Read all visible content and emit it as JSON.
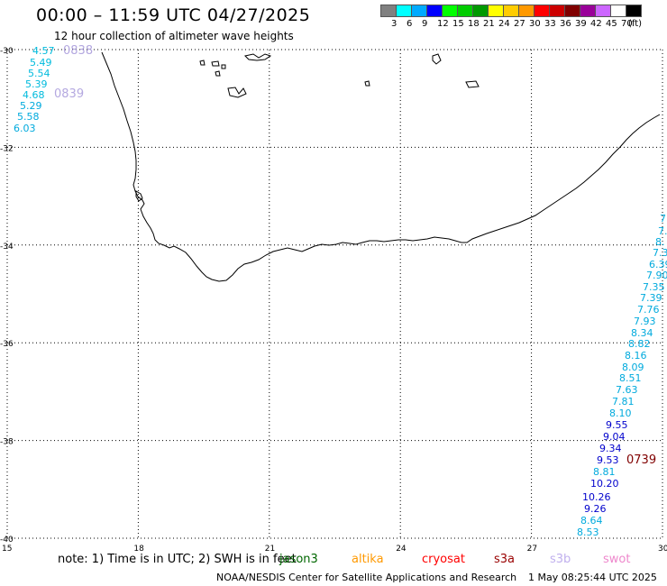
{
  "header": {
    "title": "00:00 – 11:59 UTC 04/27/2025",
    "subtitle": "12 hour collection of altimeter wave heights"
  },
  "colorbar": {
    "colors": [
      "#808080",
      "#00ffff",
      "#00aaff",
      "#0000ff",
      "#00ff00",
      "#00cc00",
      "#009900",
      "#ffff00",
      "#ffcc00",
      "#ff9900",
      "#ff0000",
      "#cc0000",
      "#800000",
      "#990099",
      "#cc66ff",
      "#ffffff",
      "#000000"
    ],
    "ticks": [
      "3",
      "6",
      "9",
      "12",
      "15",
      "18",
      "21",
      "24",
      "27",
      "30",
      "33",
      "36",
      "39",
      "42",
      "45",
      "70",
      "(ft)"
    ]
  },
  "map": {
    "lon_range": [
      15,
      30
    ],
    "lat_range": [
      -40,
      -30
    ],
    "x_ticks": [
      "15",
      "18",
      "21",
      "24",
      "27",
      "30"
    ],
    "y_ticks": [
      "-30",
      "-32",
      "-34",
      "-36",
      "-38",
      "-40"
    ],
    "grid": true
  },
  "tracks": [
    {
      "id": "west-track",
      "color": "#00aacc",
      "time_labels": [
        {
          "text": "0838",
          "color": "#b4a8e0"
        },
        {
          "text": "0839",
          "color": "#b4a8e0"
        }
      ],
      "points": [
        {
          "label": "4.57",
          "color": "#00bbdd"
        },
        {
          "label": "5.49",
          "color": "#00bbdd"
        },
        {
          "label": "5.54",
          "color": "#00bbdd"
        },
        {
          "label": "5.39",
          "color": "#00bbdd"
        },
        {
          "label": "4.68",
          "color": "#00bbdd"
        },
        {
          "label": "5.29",
          "color": "#00aadd"
        },
        {
          "label": "5.58",
          "color": "#00aadd"
        },
        {
          "label": "6.03",
          "color": "#00aadd"
        }
      ]
    },
    {
      "id": "east-track",
      "time_labels": [
        {
          "text": "0739",
          "color": "#800000"
        }
      ],
      "points": [
        {
          "label": "7.",
          "color": "#00aadd"
        },
        {
          "label": "7.",
          "color": "#00aadd"
        },
        {
          "label": "8.",
          "color": "#00aadd"
        },
        {
          "label": "7.3",
          "color": "#00aadd"
        },
        {
          "label": "6.39",
          "color": "#00aadd"
        },
        {
          "label": "7.90",
          "color": "#00aadd"
        },
        {
          "label": "7.35",
          "color": "#00aadd"
        },
        {
          "label": "7.39",
          "color": "#00aadd"
        },
        {
          "label": "7.76",
          "color": "#00aadd"
        },
        {
          "label": "7.93",
          "color": "#00aadd"
        },
        {
          "label": "8.34",
          "color": "#00aadd"
        },
        {
          "label": "8.82",
          "color": "#00aadd"
        },
        {
          "label": "8.16",
          "color": "#00aadd"
        },
        {
          "label": "8.09",
          "color": "#00aadd"
        },
        {
          "label": "8.51",
          "color": "#00aadd"
        },
        {
          "label": "7.63",
          "color": "#00aadd"
        },
        {
          "label": "7.81",
          "color": "#00aadd"
        },
        {
          "label": "8.10",
          "color": "#00aadd"
        },
        {
          "label": "9.55",
          "color": "#0000cc"
        },
        {
          "label": "9.04",
          "color": "#0000cc"
        },
        {
          "label": "9.34",
          "color": "#0000cc"
        },
        {
          "label": "9.53",
          "color": "#0000cc"
        },
        {
          "label": "8.81",
          "color": "#00aadd"
        },
        {
          "label": "10.20",
          "color": "#0000cc"
        },
        {
          "label": "10.26",
          "color": "#0000cc"
        },
        {
          "label": "9.26",
          "color": "#0000cc"
        },
        {
          "label": "8.64",
          "color": "#00aadd"
        },
        {
          "label": "8.53",
          "color": "#00aadd"
        }
      ]
    }
  ],
  "footer": {
    "note": "note:  1) Time is in UTC; 2) SWH is in feet",
    "satellites": [
      {
        "name": "jason3",
        "color": "#006600"
      },
      {
        "name": "altika",
        "color": "#ff9900"
      },
      {
        "name": "cryosat",
        "color": "#ff0000"
      },
      {
        "name": "s3a",
        "color": "#990000"
      },
      {
        "name": "s3b",
        "color": "#c0b0ee"
      },
      {
        "name": "swot",
        "color": "#ee88cc"
      }
    ],
    "credit": "NOAA/NESDIS Center for Satellite Applications and Research",
    "timestamp": "1 May 08:25:44 UTC 2025"
  }
}
